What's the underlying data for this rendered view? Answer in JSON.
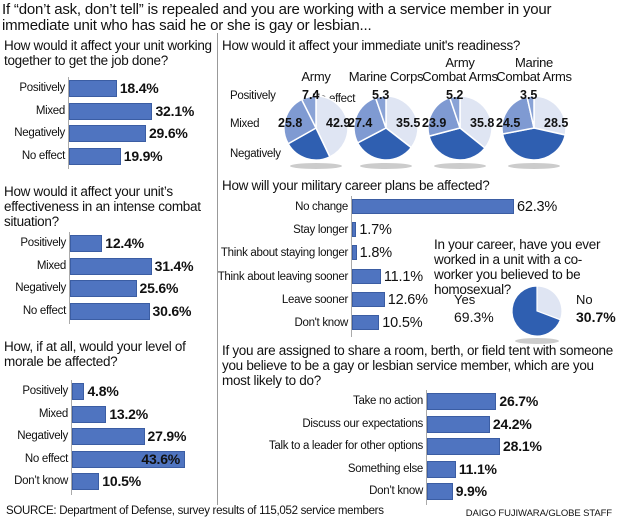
{
  "headline": "If “don’t ask, don’t tell” is repealed and you are working with a service member in your immediate unit who has said he or she is gay or lesbian...",
  "colors": {
    "bar": "#4f74c0",
    "pie_positive": "#8aa3d6",
    "pie_mixed": "#7f9ad2",
    "pie_negative": "#2f5fb1",
    "pie_noeffect": "#dfe5f3"
  },
  "chart_data": [
    {
      "id": "teamwork",
      "type": "bar",
      "title": "How would it affect your unit working together to get the job done?",
      "categories": [
        "Positively",
        "Mixed",
        "Negatively",
        "No effect"
      ],
      "values": [
        18.4,
        32.1,
        29.6,
        19.9
      ],
      "labels": [
        "18.4%",
        "32.1%",
        "29.6%",
        "19.9%"
      ]
    },
    {
      "id": "combat",
      "type": "bar",
      "title": "How would it affect your unit’s effectiveness in an intense combat situation?",
      "categories": [
        "Positively",
        "Mixed",
        "Negatively",
        "No effect"
      ],
      "values": [
        12.4,
        31.4,
        25.6,
        30.6
      ],
      "labels": [
        "12.4%",
        "31.4%",
        "25.6%",
        "30.6%"
      ]
    },
    {
      "id": "morale",
      "type": "bar",
      "title": "How, if at all, would your level of morale be affected?",
      "categories": [
        "Positively",
        "Mixed",
        "Negatively",
        "No effect",
        "Don’t know"
      ],
      "values": [
        4.8,
        13.2,
        27.9,
        43.6,
        10.5
      ],
      "labels": [
        "4.8%",
        "13.2%",
        "27.9%",
        "43.6%",
        "10.5%"
      ]
    },
    {
      "id": "readiness",
      "type": "pie",
      "title": "How would it affect your immediate unit's readiness?",
      "legend": [
        "Positively",
        "Mixed",
        "Negatively",
        "No effect"
      ],
      "pies": [
        {
          "name": "Army",
          "positive": 7.4,
          "mixed": 25.8,
          "noeffect": 42.9,
          "labels": [
            "7.4",
            "25.8",
            "42.9"
          ]
        },
        {
          "name": "Marine Corps",
          "positive": 5.3,
          "mixed": 27.4,
          "noeffect": 35.5,
          "labels": [
            "5.3",
            "27.4",
            "35.5"
          ]
        },
        {
          "name": "Army Combat Arms",
          "name_lines": [
            "Army",
            "Combat Arms"
          ],
          "positive": 5.2,
          "mixed": 23.9,
          "noeffect": 35.8,
          "labels": [
            "5.2",
            "23.9",
            "35.8"
          ]
        },
        {
          "name": "Marine Combat Arms",
          "name_lines": [
            "Marine",
            "Combat Arms"
          ],
          "positive": 3.5,
          "mixed": 24.5,
          "noeffect": 28.5,
          "labels": [
            "3.5",
            "24.5",
            "28.5"
          ]
        }
      ]
    },
    {
      "id": "career",
      "type": "bar",
      "title": "How will your military career plans be affected?",
      "categories": [
        "No change",
        "Stay longer",
        "Think about staying longer",
        "Think about leaving sooner",
        "Leave sooner",
        "Don't know"
      ],
      "values": [
        62.3,
        1.7,
        1.8,
        11.1,
        12.6,
        10.5
      ],
      "labels": [
        "62.3%",
        "1.7%",
        "1.8%",
        "11.1%",
        "12.6%",
        "10.5%"
      ]
    },
    {
      "id": "coworker",
      "type": "pie",
      "title": "In your career, have you ever worked in a unit with a co-worker you believed to be homosexual?",
      "categories": [
        "Yes",
        "No"
      ],
      "values": [
        69.3,
        30.7
      ],
      "labels": [
        "69.3%",
        "30.7%"
      ]
    },
    {
      "id": "roommate",
      "type": "bar",
      "title": "If you are assigned to share a room, berth, or field tent with someone you believe to be a gay or lesbian service member, which are you most likely to do?",
      "categories": [
        "Take no action",
        "Discuss our expectations",
        "Talk to a leader for other options",
        "Something else",
        "Don’t know"
      ],
      "values": [
        26.7,
        24.2,
        28.1,
        11.1,
        9.9
      ],
      "labels": [
        "26.7%",
        "24.2%",
        "28.1%",
        "11.1%",
        "9.9%"
      ]
    }
  ],
  "footer": {
    "source": "SOURCE: Department of Defense, survey results of 115,052 service members",
    "credit": "DAIGO FUJIWARA/GLOBE STAFF"
  }
}
